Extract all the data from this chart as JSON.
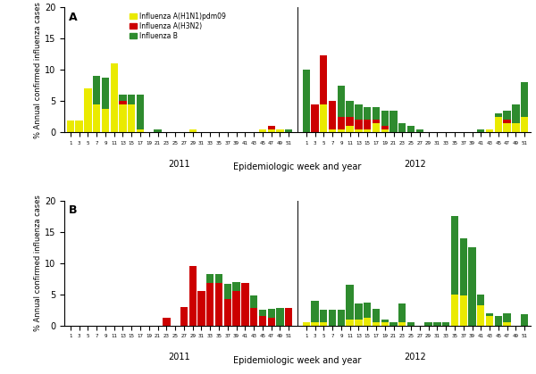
{
  "panel_A": {
    "weeks_2011": [
      1,
      3,
      5,
      7,
      9,
      11,
      13,
      15,
      17,
      19,
      21,
      23,
      25,
      27,
      29,
      31,
      33,
      35,
      37,
      39,
      41,
      43,
      45,
      47,
      49,
      51
    ],
    "weeks_2012": [
      1,
      3,
      5,
      7,
      9,
      11,
      13,
      15,
      17,
      19,
      21,
      23,
      25,
      27,
      29,
      31,
      33,
      35,
      37,
      39,
      41,
      43,
      45,
      47,
      49,
      51
    ],
    "h1n1_2011": [
      1.8,
      1.8,
      7.0,
      4.5,
      3.8,
      11.0,
      4.5,
      4.5,
      0.5,
      0.0,
      0.0,
      0.0,
      0.0,
      0.0,
      0.5,
      0.0,
      0.0,
      0.0,
      0.0,
      0.0,
      0.0,
      0.0,
      0.5,
      0.5,
      0.5,
      0.0
    ],
    "h3n2_2011": [
      0.0,
      0.0,
      0.0,
      0.0,
      0.0,
      0.0,
      0.5,
      0.0,
      0.0,
      0.0,
      0.0,
      0.0,
      0.0,
      0.0,
      0.0,
      0.0,
      0.0,
      0.0,
      0.0,
      0.0,
      0.0,
      0.0,
      0.0,
      0.5,
      0.0,
      0.0
    ],
    "b_2011": [
      0.0,
      0.0,
      0.0,
      4.5,
      5.0,
      0.0,
      1.0,
      1.5,
      5.5,
      0.0,
      0.5,
      0.0,
      0.0,
      0.0,
      0.0,
      0.0,
      0.0,
      0.0,
      0.0,
      0.0,
      0.0,
      0.0,
      0.0,
      0.0,
      0.0,
      0.5
    ],
    "h1n1_2012": [
      0.0,
      0.0,
      4.5,
      0.5,
      0.5,
      1.0,
      0.5,
      0.5,
      1.5,
      0.5,
      0.0,
      0.0,
      0.0,
      0.0,
      0.0,
      0.0,
      0.0,
      0.0,
      0.0,
      0.0,
      0.0,
      0.5,
      2.5,
      1.5,
      1.5,
      2.5
    ],
    "h3n2_2012": [
      0.0,
      4.5,
      7.8,
      4.5,
      2.0,
      1.5,
      1.5,
      1.5,
      0.5,
      0.5,
      0.0,
      0.0,
      0.0,
      0.0,
      0.0,
      0.0,
      0.0,
      0.0,
      0.0,
      0.0,
      0.0,
      0.0,
      0.0,
      0.5,
      0.0,
      0.0
    ],
    "b_2012": [
      10.0,
      0.0,
      0.0,
      0.0,
      5.0,
      2.5,
      2.5,
      2.0,
      2.0,
      2.5,
      3.5,
      1.5,
      1.0,
      0.5,
      0.0,
      0.0,
      0.0,
      0.0,
      0.0,
      0.0,
      0.5,
      0.0,
      0.5,
      1.5,
      3.0,
      5.5
    ]
  },
  "panel_B": {
    "weeks_2011": [
      1,
      3,
      5,
      7,
      9,
      11,
      13,
      15,
      17,
      19,
      21,
      23,
      25,
      27,
      29,
      31,
      33,
      35,
      37,
      39,
      41,
      43,
      45,
      47,
      49,
      51
    ],
    "weeks_2012": [
      1,
      3,
      5,
      7,
      9,
      11,
      13,
      15,
      17,
      19,
      21,
      23,
      25,
      27,
      29,
      31,
      33,
      35,
      37,
      39,
      41,
      43,
      45,
      47,
      49,
      51
    ],
    "h1n1_2011": [
      0.0,
      0.0,
      0.0,
      0.0,
      0.0,
      0.0,
      0.0,
      0.0,
      0.0,
      0.0,
      0.0,
      0.0,
      0.0,
      0.0,
      0.0,
      0.0,
      0.0,
      0.0,
      0.0,
      0.0,
      0.0,
      0.0,
      0.0,
      0.0,
      0.0,
      0.0
    ],
    "h3n2_2011": [
      0.0,
      0.0,
      0.0,
      0.0,
      0.0,
      0.0,
      0.0,
      0.0,
      0.0,
      0.0,
      0.0,
      1.2,
      0.0,
      3.0,
      9.5,
      5.5,
      6.8,
      6.8,
      4.2,
      5.5,
      6.8,
      2.8,
      1.5,
      1.2,
      0.0,
      2.8
    ],
    "b_2011": [
      0.0,
      0.0,
      0.0,
      0.0,
      0.0,
      0.0,
      0.0,
      0.0,
      0.0,
      0.0,
      0.0,
      0.0,
      0.0,
      0.0,
      0.0,
      0.0,
      1.5,
      1.5,
      2.5,
      1.5,
      0.0,
      2.0,
      1.0,
      1.5,
      2.8,
      0.0
    ],
    "h1n1_2012": [
      0.5,
      0.5,
      0.5,
      0.0,
      0.0,
      1.0,
      1.0,
      1.2,
      0.5,
      0.5,
      0.0,
      0.5,
      0.0,
      0.0,
      0.0,
      0.0,
      0.0,
      5.0,
      4.8,
      0.0,
      3.2,
      1.5,
      0.0,
      0.5,
      0.0,
      0.0
    ],
    "h3n2_2012": [
      0.0,
      0.0,
      0.0,
      0.0,
      0.0,
      0.0,
      0.0,
      0.0,
      0.0,
      0.0,
      0.0,
      0.0,
      0.0,
      0.0,
      0.0,
      0.0,
      0.0,
      0.0,
      0.0,
      0.0,
      0.0,
      0.0,
      0.0,
      0.0,
      0.0,
      0.0
    ],
    "b_2012": [
      0.0,
      3.5,
      2.0,
      2.5,
      2.5,
      5.5,
      2.5,
      2.5,
      2.2,
      0.5,
      0.5,
      3.0,
      0.5,
      0.0,
      0.5,
      0.5,
      0.5,
      12.5,
      9.2,
      12.5,
      1.8,
      0.5,
      1.5,
      1.5,
      0.0,
      1.8
    ]
  },
  "colors": {
    "h1n1": "#EAEA00",
    "h3n2": "#CC0000",
    "b": "#2E8B2E"
  },
  "ylim": [
    0,
    20
  ],
  "yticks": [
    0,
    5,
    10,
    15,
    20
  ],
  "ylabel": "% Annual confirmed influenza cases",
  "xlabel": "Epidemiologic week and year",
  "legend_labels": [
    "Influenza A(H1N1)pdm09",
    "Influenza A(H3N2)",
    "Influenza B"
  ],
  "bar_width": 0.85,
  "panel_labels": [
    "A",
    "B"
  ]
}
